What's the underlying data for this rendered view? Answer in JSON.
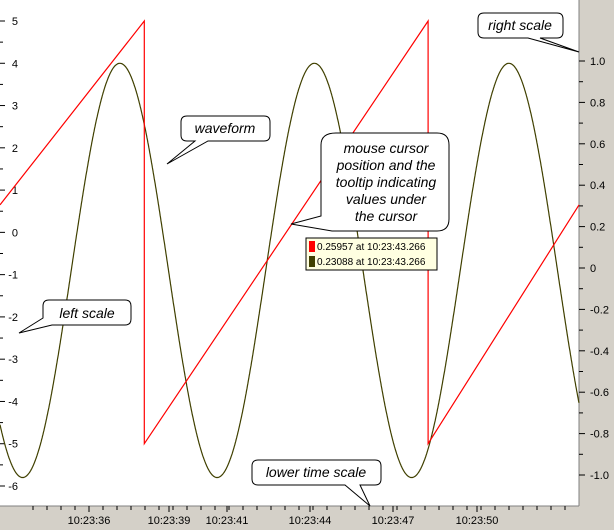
{
  "chart_data": {
    "type": "line",
    "left_axis": {
      "ylim": [
        -6.3,
        5.3
      ],
      "ticks": [
        "5",
        "4",
        "3",
        "2",
        "1",
        "0",
        "-1",
        "-2",
        "-3",
        "-4",
        "-5",
        "-6"
      ]
    },
    "right_axis": {
      "ylim": [
        -1.13,
        1.18
      ],
      "ticks": [
        "1.0",
        "0.8",
        "0.6",
        "0.4",
        "0.2",
        "0",
        "-0.2",
        "-0.4",
        "-0.6",
        "-0.8",
        "-1.0"
      ]
    },
    "x_axis": {
      "ticks": [
        "10:23:36",
        "10:23:39",
        "10:23:41",
        "10:23:44",
        "10:23:47",
        "10:23:50"
      ]
    },
    "series": [
      {
        "color": "#ff0000",
        "axis": "left",
        "shape": "sawtooth",
        "points": [
          [
            0.0,
            0.65
          ],
          [
            6.38,
            5.0
          ],
          [
            6.38,
            -5.0
          ],
          [
            18.93,
            5.0
          ],
          [
            18.93,
            -5.0
          ],
          [
            25.6,
            0.65
          ]
        ]
      },
      {
        "color": "#404000",
        "axis": "left",
        "shape": "sine",
        "amplitude": 4.9,
        "offset": -0.9,
        "period": 8.6,
        "peak_at": 5.3,
        "x_range": [
          0,
          25.6
        ]
      }
    ],
    "grid": false,
    "legend": "none"
  },
  "annotations": {
    "right_scale": "right scale",
    "waveform": "waveform",
    "cursor_line1": "mouse cursor",
    "cursor_line2": "position and the",
    "cursor_line3": "tooltip indicating",
    "cursor_line4": "values under",
    "cursor_line5": "the cursor",
    "left_scale": "left scale",
    "lower_time_scale": "lower time scale"
  },
  "tooltip": {
    "row1": "0.25957 at 10:23:43.266",
    "row2": "0.23088 at 10:23:43.266",
    "row1_color": "#ff0000",
    "row2_color": "#404000"
  },
  "colors": {
    "background": "#ffffff",
    "axis_panel": "#d4d0c8",
    "saw": "#ff0000",
    "sine": "#404000"
  }
}
